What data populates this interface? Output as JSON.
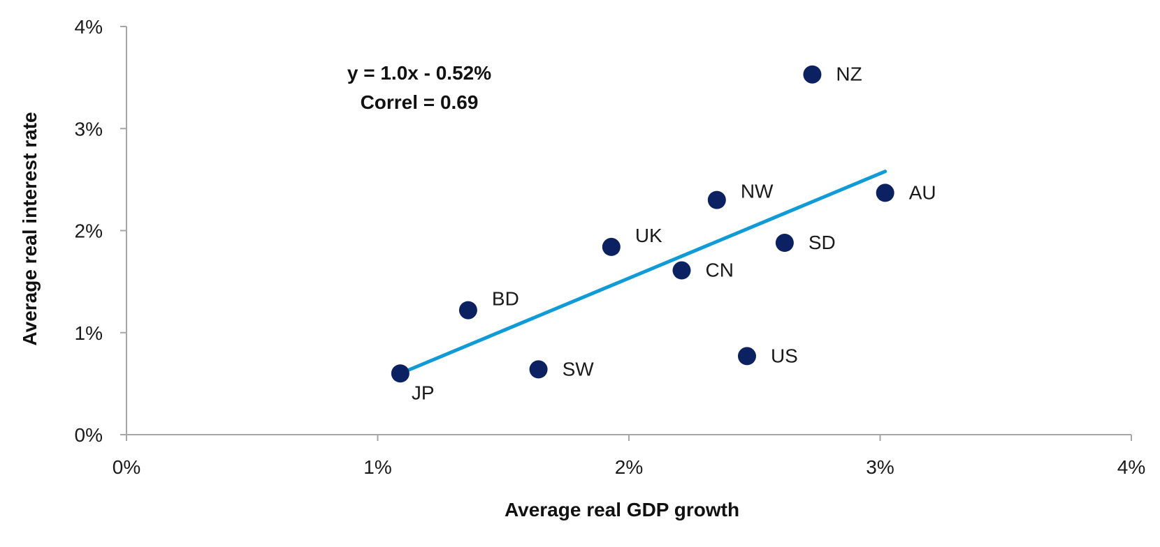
{
  "chart_data": {
    "type": "scatter",
    "xlabel": "Average real GDP growth",
    "ylabel": "Average real interest rate",
    "xlim": [
      0,
      4
    ],
    "ylim": [
      0,
      4
    ],
    "x_ticks": [
      0,
      1,
      2,
      3,
      4
    ],
    "y_ticks": [
      0,
      1,
      2,
      3,
      4
    ],
    "x_tick_labels": [
      "0%",
      "1%",
      "2%",
      "3%",
      "4%"
    ],
    "y_tick_labels": [
      "0%",
      "1%",
      "2%",
      "3%",
      "4%"
    ],
    "grid": false,
    "points": [
      {
        "label": "JP",
        "x": 1.09,
        "y": 0.6
      },
      {
        "label": "BD",
        "x": 1.36,
        "y": 1.22
      },
      {
        "label": "SW",
        "x": 1.64,
        "y": 0.64
      },
      {
        "label": "UK",
        "x": 1.93,
        "y": 1.84
      },
      {
        "label": "CN",
        "x": 2.21,
        "y": 1.61
      },
      {
        "label": "NW",
        "x": 2.35,
        "y": 2.3
      },
      {
        "label": "US",
        "x": 2.47,
        "y": 0.77
      },
      {
        "label": "SD",
        "x": 2.62,
        "y": 1.88
      },
      {
        "label": "NZ",
        "x": 2.73,
        "y": 3.53
      },
      {
        "label": "AU",
        "x": 3.02,
        "y": 2.37
      }
    ],
    "trendline": {
      "x": [
        1.09,
        3.02
      ],
      "y": [
        0.6,
        2.58
      ]
    },
    "annotations": [
      "y = 1.0x - 0.52%",
      "Correl = 0.69"
    ],
    "colors": {
      "point": "#0b2161",
      "trendline": "#0e9bd8",
      "axis": "#a6a6a6"
    }
  }
}
